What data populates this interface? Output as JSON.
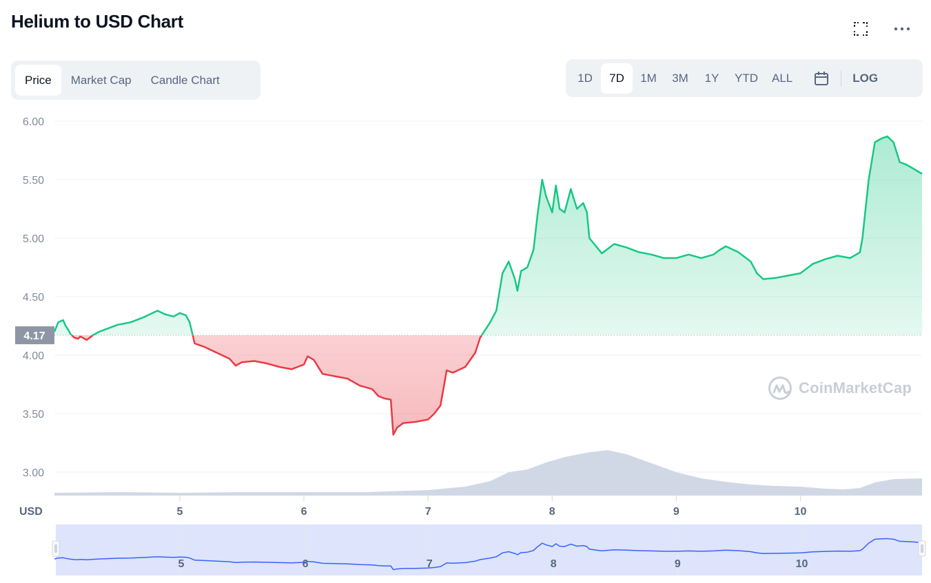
{
  "header": {
    "title": "Helium to USD Chart"
  },
  "icons": {
    "fullscreen": "fullscreen-icon",
    "more": "more-icon",
    "calendar": "calendar-icon",
    "logo": "coinmarketcap-logo-icon"
  },
  "tabs": [
    {
      "label": "Price",
      "active": true
    },
    {
      "label": "Market Cap",
      "active": false
    },
    {
      "label": "Candle Chart",
      "active": false
    }
  ],
  "ranges": [
    {
      "label": "1D",
      "active": false
    },
    {
      "label": "7D",
      "active": true
    },
    {
      "label": "1M",
      "active": false
    },
    {
      "label": "3M",
      "active": false
    },
    {
      "label": "1Y",
      "active": false
    },
    {
      "label": "YTD",
      "active": false
    },
    {
      "label": "ALL",
      "active": false
    }
  ],
  "log_label": "LOG",
  "watermark": "CoinMarketCap",
  "colors": {
    "up": "#16c784",
    "down": "#ea3943",
    "volume": "#cfd6e4",
    "navigator_fill": "#dde4fb",
    "navigator_line": "#3861fb",
    "baseline_tag": "#8e96a6"
  },
  "chart_data": {
    "type": "line",
    "title": "Helium to USD Chart",
    "ylabel": "USD",
    "y_ticks": [
      "6.00",
      "5.50",
      "5.00",
      "4.50",
      "4.00",
      "3.50",
      "3.00"
    ],
    "ylim": [
      2.8,
      6.0
    ],
    "x_ticks": [
      "5",
      "6",
      "7",
      "8",
      "9",
      "10"
    ],
    "x_tick_values": [
      5,
      6,
      7,
      8,
      9,
      10
    ],
    "xlim": [
      3.99,
      10.98
    ],
    "baseline": {
      "value": 4.17,
      "label": "4.17"
    },
    "series": [
      {
        "x": [
          3.99,
          4.02,
          4.06,
          4.08,
          4.1,
          4.12,
          4.15,
          4.18,
          4.2,
          4.25,
          4.3,
          4.35,
          4.4,
          4.45,
          4.5,
          4.6,
          4.7,
          4.78,
          4.82,
          4.88,
          4.95,
          5.0,
          5.05,
          5.08,
          5.12,
          5.2,
          5.3,
          5.4,
          5.45,
          5.5,
          5.6,
          5.7,
          5.8,
          5.9,
          5.95,
          6.0,
          6.03,
          6.08,
          6.15,
          6.25,
          6.35,
          6.45,
          6.55,
          6.6,
          6.65,
          6.7,
          6.72,
          6.75,
          6.8,
          6.9,
          6.95,
          7.0,
          7.05,
          7.1,
          7.15,
          7.2,
          7.3,
          7.38,
          7.42,
          7.5,
          7.55,
          7.6,
          7.65,
          7.7,
          7.72,
          7.75,
          7.8,
          7.85,
          7.88,
          7.92,
          7.95,
          8.0,
          8.03,
          8.06,
          8.1,
          8.15,
          8.2,
          8.25,
          8.28,
          8.3,
          8.4,
          8.5,
          8.6,
          8.7,
          8.8,
          8.9,
          9.0,
          9.1,
          9.2,
          9.3,
          9.35,
          9.4,
          9.5,
          9.6,
          9.65,
          9.7,
          9.8,
          9.9,
          10.0,
          10.1,
          10.2,
          10.3,
          10.4,
          10.45,
          10.48,
          10.5,
          10.55,
          10.6,
          10.65,
          10.7,
          10.75,
          10.8,
          10.85,
          10.9,
          10.98
        ],
        "y": [
          4.2,
          4.28,
          4.3,
          4.25,
          4.22,
          4.18,
          4.15,
          4.14,
          4.16,
          4.13,
          4.17,
          4.2,
          4.22,
          4.24,
          4.26,
          4.28,
          4.32,
          4.36,
          4.38,
          4.35,
          4.33,
          4.36,
          4.34,
          4.28,
          4.1,
          4.07,
          4.02,
          3.97,
          3.91,
          3.94,
          3.95,
          3.93,
          3.9,
          3.88,
          3.9,
          3.92,
          3.99,
          3.96,
          3.84,
          3.82,
          3.8,
          3.74,
          3.71,
          3.65,
          3.63,
          3.62,
          3.32,
          3.38,
          3.42,
          3.43,
          3.44,
          3.45,
          3.5,
          3.57,
          3.87,
          3.85,
          3.9,
          4.02,
          4.15,
          4.28,
          4.38,
          4.7,
          4.8,
          4.65,
          4.55,
          4.72,
          4.75,
          4.9,
          5.18,
          5.5,
          5.36,
          5.22,
          5.45,
          5.25,
          5.22,
          5.42,
          5.25,
          5.3,
          5.22,
          5.0,
          4.87,
          4.95,
          4.92,
          4.88,
          4.86,
          4.83,
          4.83,
          4.86,
          4.83,
          4.86,
          4.9,
          4.93,
          4.88,
          4.8,
          4.7,
          4.65,
          4.66,
          4.68,
          4.7,
          4.78,
          4.82,
          4.85,
          4.83,
          4.86,
          4.88,
          5.0,
          5.5,
          5.82,
          5.85,
          5.87,
          5.82,
          5.65,
          5.63,
          5.6,
          5.55
        ]
      }
    ],
    "volume": {
      "x": [
        3.99,
        4.5,
        5.0,
        5.5,
        6.0,
        6.5,
        7.0,
        7.3,
        7.5,
        7.65,
        7.8,
        7.95,
        8.1,
        8.3,
        8.45,
        8.6,
        8.8,
        9.0,
        9.2,
        9.4,
        9.6,
        9.8,
        10.0,
        10.2,
        10.35,
        10.48,
        10.6,
        10.75,
        10.98
      ],
      "v": [
        0.04,
        0.05,
        0.04,
        0.05,
        0.05,
        0.05,
        0.08,
        0.13,
        0.21,
        0.34,
        0.38,
        0.48,
        0.56,
        0.63,
        0.66,
        0.6,
        0.47,
        0.34,
        0.25,
        0.2,
        0.16,
        0.14,
        0.13,
        0.1,
        0.09,
        0.11,
        0.19,
        0.24,
        0.25
      ]
    },
    "grid": true,
    "legend": "none"
  }
}
